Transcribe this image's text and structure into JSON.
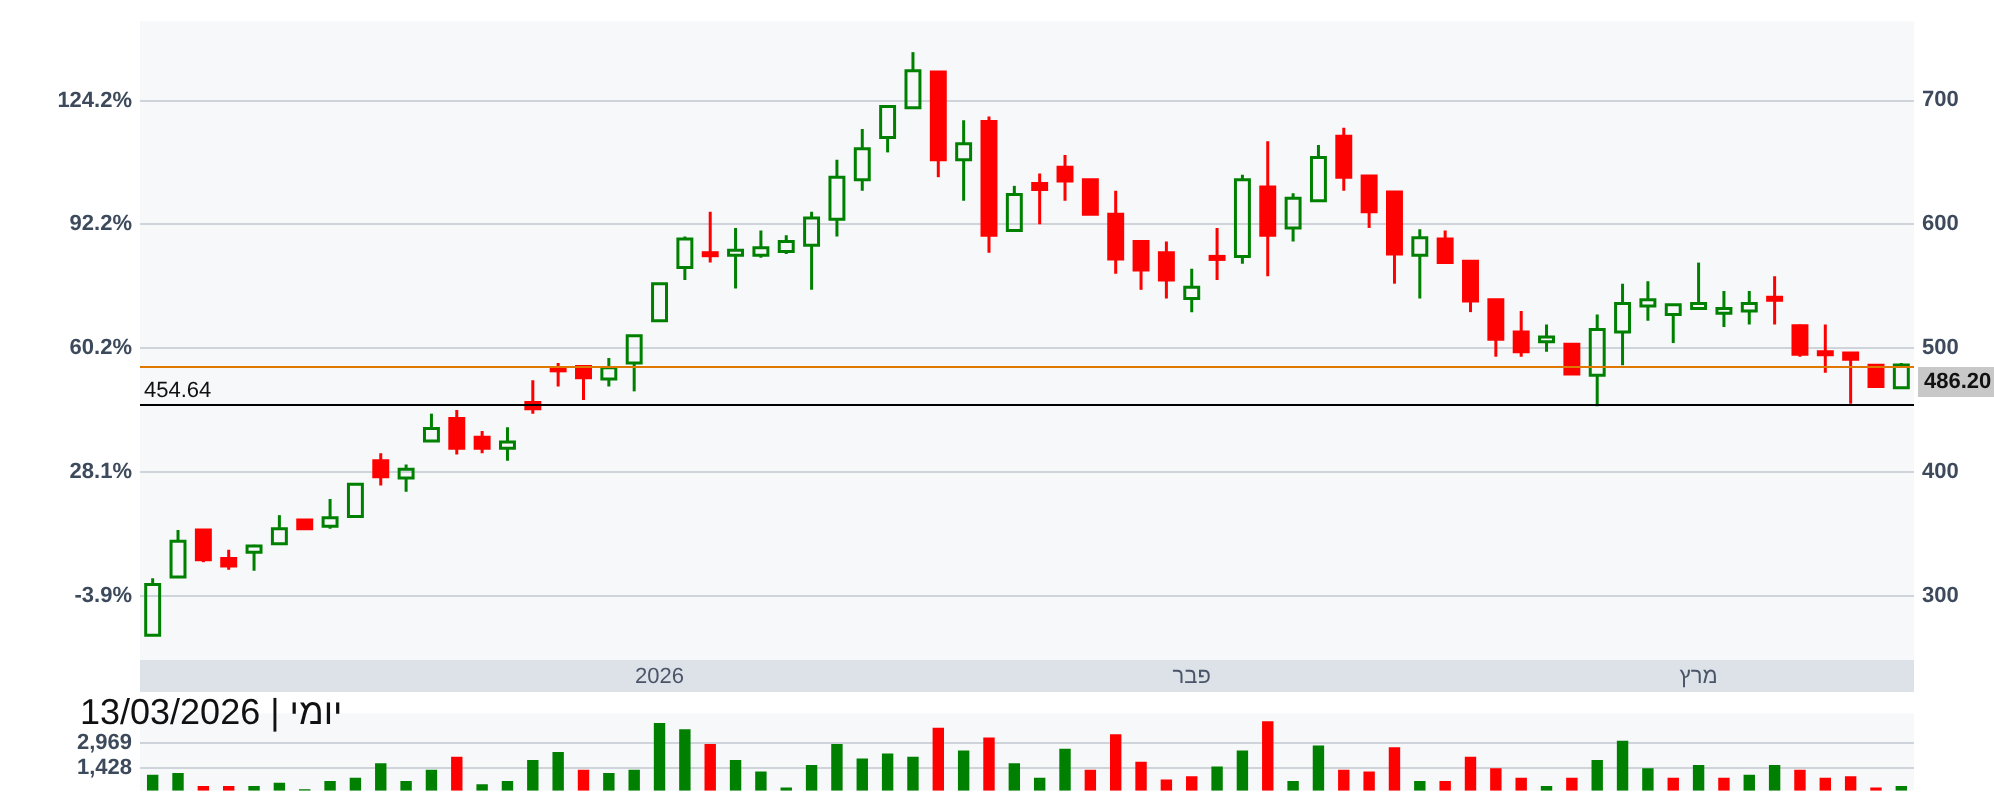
{
  "chart_data": [
    {
      "type": "candlestick",
      "categories": [
        null,
        null,
        null,
        null,
        null,
        null,
        null,
        null,
        null,
        null,
        null,
        null,
        null,
        null,
        null,
        null,
        null,
        null,
        null,
        null,
        "2026",
        null,
        null,
        null,
        null,
        null,
        null,
        null,
        null,
        null,
        null,
        null,
        null,
        null,
        null,
        null,
        null,
        null,
        null,
        null,
        null,
        "פבר",
        null,
        null,
        null,
        null,
        null,
        null,
        null,
        null,
        null,
        null,
        null,
        null,
        null,
        null,
        null,
        null,
        null,
        null,
        null,
        "מרץ",
        null,
        null,
        null,
        null,
        null,
        null,
        null,
        null
      ],
      "series": [
        {
          "axis": "y2",
          "ohlc": [
            [
              268,
              314,
              268,
              309
            ],
            [
              315,
              353,
              315,
              344
            ],
            [
              353,
              353,
              327,
              329
            ],
            [
              330,
              337,
              321,
              324
            ],
            [
              335,
              341,
              320,
              340
            ],
            [
              342,
              365,
              342,
              354
            ],
            [
              361,
              361,
              354,
              354
            ],
            [
              356,
              378,
              354,
              363
            ],
            [
              364,
              390,
              364,
              390
            ],
            [
              409,
              415,
              389,
              396
            ],
            [
              395,
              406,
              384,
              402
            ],
            [
              425,
              447,
              425,
              435
            ],
            [
              443,
              450,
              414,
              419
            ],
            [
              428,
              433,
              415,
              419
            ],
            [
              419,
              436,
              409,
              424
            ],
            [
              456,
              474,
              447,
              451
            ],
            [
              484,
              488,
              469,
              483
            ],
            [
              485,
              485,
              458,
              476
            ],
            [
              475,
              492,
              469,
              484
            ],
            [
              488,
              510,
              465,
              510
            ],
            [
              522,
              552,
              522,
              552
            ],
            [
              565,
              590,
              555,
              588
            ],
            [
              577,
              610,
              569,
              576
            ],
            [
              575,
              597,
              548,
              579
            ],
            [
              575,
              595,
              573,
              581
            ],
            [
              578,
              591,
              576,
              586
            ],
            [
              583,
              610,
              547,
              605
            ],
            [
              604,
              652,
              590,
              638
            ],
            [
              636,
              677,
              627,
              661
            ],
            [
              670,
              695,
              658,
              695
            ],
            [
              694,
              739,
              694,
              724
            ],
            [
              723,
              723,
              638,
              652
            ],
            [
              652,
              684,
              619,
              665
            ],
            [
              683,
              687,
              577,
              591
            ],
            [
              595,
              631,
              595,
              624
            ],
            [
              633,
              641,
              600,
              628
            ],
            [
              646,
              656,
              619,
              635
            ],
            [
              636,
              636,
              608,
              608
            ],
            [
              608,
              627,
              560,
              572
            ],
            [
              586,
              586,
              547,
              563
            ],
            [
              577,
              586,
              540,
              555
            ],
            [
              540,
              564,
              529,
              549
            ],
            [
              574,
              597,
              555,
              573
            ],
            [
              574,
              640,
              568,
              636
            ],
            [
              630,
              667,
              558,
              591
            ],
            [
              597,
              625,
              586,
              621
            ],
            [
              619,
              664,
              618,
              654
            ],
            [
              671,
              678,
              627,
              638
            ],
            [
              639,
              639,
              597,
              610
            ],
            [
              626,
              626,
              552,
              576
            ],
            [
              575,
              596,
              540,
              589
            ],
            [
              588,
              595,
              568,
              569
            ],
            [
              570,
              570,
              529,
              538
            ],
            [
              539,
              539,
              493,
              507
            ],
            [
              513,
              530,
              493,
              497
            ],
            [
              505,
              519,
              497,
              509
            ],
            [
              503,
              503,
              479,
              479
            ],
            [
              478,
              527,
              453,
              515
            ],
            [
              513,
              552,
              486,
              536
            ],
            [
              534,
              554,
              522,
              539
            ],
            [
              527,
              535,
              504,
              535
            ],
            [
              532,
              569,
              532,
              536
            ],
            [
              528,
              546,
              517,
              532
            ],
            [
              530,
              546,
              519,
              536
            ],
            [
              541,
              558,
              519,
              540
            ],
            [
              518,
              519,
              493,
              495
            ],
            [
              497,
              519,
              480,
              496
            ],
            [
              496,
              496,
              455,
              491
            ],
            [
              486,
              486,
              469,
              469
            ],
            [
              468,
              488,
              467,
              486.2
            ]
          ],
          "colors": [
            "#008000",
            "#008000",
            "#ff0000",
            "#ff0000",
            "#008000",
            "#008000",
            "#ff0000",
            "#008000",
            "#008000",
            "#ff0000",
            "#008000",
            "#008000",
            "#ff0000",
            "#ff0000",
            "#008000",
            "#ff0000",
            "#ff0000",
            "#ff0000",
            "#008000",
            "#008000",
            "#008000",
            "#008000",
            "#ff0000",
            "#008000",
            "#008000",
            "#008000",
            "#008000",
            "#008000",
            "#008000",
            "#008000",
            "#008000",
            "#ff0000",
            "#008000",
            "#ff0000",
            "#008000",
            "#ff0000",
            "#ff0000",
            "#ff0000",
            "#ff0000",
            "#ff0000",
            "#ff0000",
            "#008000",
            "#ff0000",
            "#008000",
            "#ff0000",
            "#008000",
            "#008000",
            "#ff0000",
            "#ff0000",
            "#ff0000",
            "#008000",
            "#ff0000",
            "#ff0000",
            "#ff0000",
            "#ff0000",
            "#008000",
            "#ff0000",
            "#008000",
            "#008000",
            "#008000",
            "#008000",
            "#008000",
            "#008000",
            "#008000",
            "#ff0000",
            "#ff0000",
            "#ff0000",
            "#ff0000",
            "#ff0000",
            "#008000"
          ]
        }
      ],
      "ylim": [
        -20.4,
        144.7
      ],
      "yticks": [
        {
          "value": -3.9,
          "label": "-3.9%"
        },
        {
          "value": 28.1,
          "label": "28.1%"
        },
        {
          "value": 60.2,
          "label": "60.2%"
        },
        {
          "value": 92.2,
          "label": "92.2%"
        },
        {
          "value": 124.2,
          "label": "124.2%"
        }
      ],
      "y2lim": [
        248,
        764
      ],
      "y2ticks": [
        300,
        400,
        500,
        600,
        700
      ],
      "ref_lines": [
        {
          "axis": "y2",
          "value": 486.2,
          "label": "486.20",
          "color": "#e07800"
        },
        {
          "axis": "y2",
          "value": 454.64,
          "label": "454.64",
          "color": "#000000"
        }
      ],
      "grid": "y"
    },
    {
      "type": "bar",
      "title": "יומי | 13/03/2026",
      "categories": [
        null,
        null,
        null,
        null,
        null,
        null,
        null,
        null,
        null,
        null,
        null,
        null,
        null,
        null,
        null,
        null,
        null,
        null,
        null,
        null,
        null,
        null,
        null,
        null,
        null,
        null,
        null,
        null,
        null,
        null,
        null,
        null,
        null,
        null,
        null,
        null,
        null,
        null,
        null,
        null,
        null,
        null,
        null,
        null,
        null,
        null,
        null,
        null,
        null,
        null,
        null,
        null,
        null,
        null,
        null,
        null,
        null,
        null,
        null,
        null,
        null,
        null,
        null,
        null,
        null,
        null,
        null,
        null,
        null,
        null
      ],
      "values": [
        1000,
        1100,
        300,
        300,
        300,
        500,
        100,
        600,
        800,
        1700,
        600,
        1300,
        2100,
        400,
        600,
        1900,
        2400,
        1300,
        1100,
        1300,
        4200,
        3800,
        2900,
        1900,
        1200,
        200,
        1600,
        2900,
        2000,
        2300,
        2100,
        3900,
        2500,
        3300,
        1700,
        800,
        2600,
        1300,
        3500,
        1800,
        700,
        900,
        1500,
        2500,
        4300,
        600,
        2800,
        1300,
        1200,
        2700,
        600,
        600,
        2100,
        1400,
        800,
        300,
        800,
        1900,
        3100,
        1400,
        800,
        1600,
        800,
        1000,
        1600,
        1300,
        800,
        900,
        200,
        300
      ],
      "colors": [
        "#008000",
        "#008000",
        "#ff0000",
        "#ff0000",
        "#008000",
        "#008000",
        "#008000",
        "#008000",
        "#008000",
        "#008000",
        "#008000",
        "#008000",
        "#ff0000",
        "#008000",
        "#008000",
        "#008000",
        "#008000",
        "#ff0000",
        "#008000",
        "#008000",
        "#008000",
        "#008000",
        "#ff0000",
        "#008000",
        "#008000",
        "#008000",
        "#008000",
        "#008000",
        "#008000",
        "#008000",
        "#008000",
        "#ff0000",
        "#008000",
        "#ff0000",
        "#008000",
        "#008000",
        "#008000",
        "#ff0000",
        "#ff0000",
        "#ff0000",
        "#ff0000",
        "#ff0000",
        "#008000",
        "#008000",
        "#ff0000",
        "#008000",
        "#008000",
        "#ff0000",
        "#ff0000",
        "#ff0000",
        "#008000",
        "#ff0000",
        "#ff0000",
        "#ff0000",
        "#ff0000",
        "#008000",
        "#ff0000",
        "#008000",
        "#008000",
        "#008000",
        "#ff0000",
        "#008000",
        "#ff0000",
        "#008000",
        "#008000",
        "#ff0000",
        "#ff0000",
        "#ff0000",
        "#ff0000",
        "#008000"
      ],
      "ylim": [
        0,
        4800
      ],
      "yticks": [
        {
          "value": 1428,
          "label": "1,428"
        },
        {
          "value": 2969,
          "label": "2,969"
        }
      ],
      "grid": "y",
      "tick_labels": "y"
    }
  ]
}
